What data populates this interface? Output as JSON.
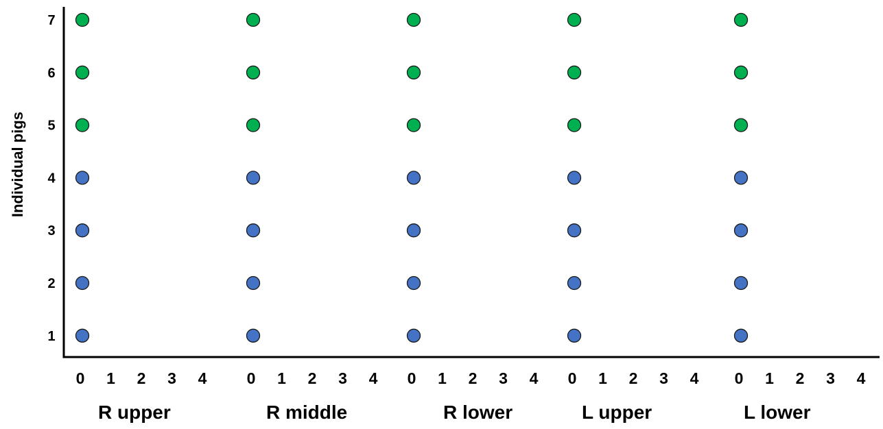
{
  "chart_data": {
    "type": "scatter",
    "title": "",
    "xlabel": "",
    "ylabel": "Individual pigs",
    "y_ticks": [
      "1",
      "2",
      "3",
      "4",
      "5",
      "6",
      "7"
    ],
    "ylim": [
      0.5,
      7.3
    ],
    "x_ticks": [
      "0",
      "1",
      "2",
      "3",
      "4"
    ],
    "xlim": [
      0,
      4
    ],
    "grid": false,
    "colors": {
      "blue": "#4472C4",
      "green": "#00B050",
      "outline": "#1a1a1a"
    },
    "groups": [
      {
        "label": "R upper",
        "points": [
          {
            "pig": 1,
            "x": 0,
            "color": "blue"
          },
          {
            "pig": 2,
            "x": 0,
            "color": "blue"
          },
          {
            "pig": 3,
            "x": 0,
            "color": "blue"
          },
          {
            "pig": 4,
            "x": 0,
            "color": "blue"
          },
          {
            "pig": 5,
            "x": 0,
            "color": "green"
          },
          {
            "pig": 6,
            "x": 0,
            "color": "green"
          },
          {
            "pig": 7,
            "x": 0,
            "color": "green"
          }
        ]
      },
      {
        "label": "R middle",
        "points": [
          {
            "pig": 1,
            "x": 0,
            "color": "blue"
          },
          {
            "pig": 2,
            "x": 0,
            "color": "blue"
          },
          {
            "pig": 3,
            "x": 0,
            "color": "blue"
          },
          {
            "pig": 4,
            "x": 0,
            "color": "blue"
          },
          {
            "pig": 5,
            "x": 0,
            "color": "green"
          },
          {
            "pig": 6,
            "x": 0,
            "color": "green"
          },
          {
            "pig": 7,
            "x": 0,
            "color": "green"
          }
        ]
      },
      {
        "label": "R lower",
        "points": [
          {
            "pig": 1,
            "x": 0,
            "color": "blue"
          },
          {
            "pig": 2,
            "x": 0,
            "color": "blue"
          },
          {
            "pig": 3,
            "x": 0,
            "color": "blue"
          },
          {
            "pig": 4,
            "x": 0,
            "color": "blue"
          },
          {
            "pig": 5,
            "x": 0,
            "color": "green"
          },
          {
            "pig": 6,
            "x": 0,
            "color": "green"
          },
          {
            "pig": 7,
            "x": 0,
            "color": "green"
          }
        ]
      },
      {
        "label": "L upper",
        "points": [
          {
            "pig": 1,
            "x": 0,
            "color": "blue"
          },
          {
            "pig": 2,
            "x": 0,
            "color": "blue"
          },
          {
            "pig": 3,
            "x": 0,
            "color": "blue"
          },
          {
            "pig": 4,
            "x": 0,
            "color": "blue"
          },
          {
            "pig": 5,
            "x": 0,
            "color": "green"
          },
          {
            "pig": 6,
            "x": 0,
            "color": "green"
          },
          {
            "pig": 7,
            "x": 0,
            "color": "green"
          }
        ]
      },
      {
        "label": "L lower",
        "points": [
          {
            "pig": 1,
            "x": 0,
            "color": "blue"
          },
          {
            "pig": 2,
            "x": 0,
            "color": "blue"
          },
          {
            "pig": 3,
            "x": 0,
            "color": "blue"
          },
          {
            "pig": 4,
            "x": 0,
            "color": "blue"
          },
          {
            "pig": 5,
            "x": 0,
            "color": "green"
          },
          {
            "pig": 6,
            "x": 0,
            "color": "green"
          },
          {
            "pig": 7,
            "x": 0,
            "color": "green"
          }
        ]
      }
    ]
  }
}
